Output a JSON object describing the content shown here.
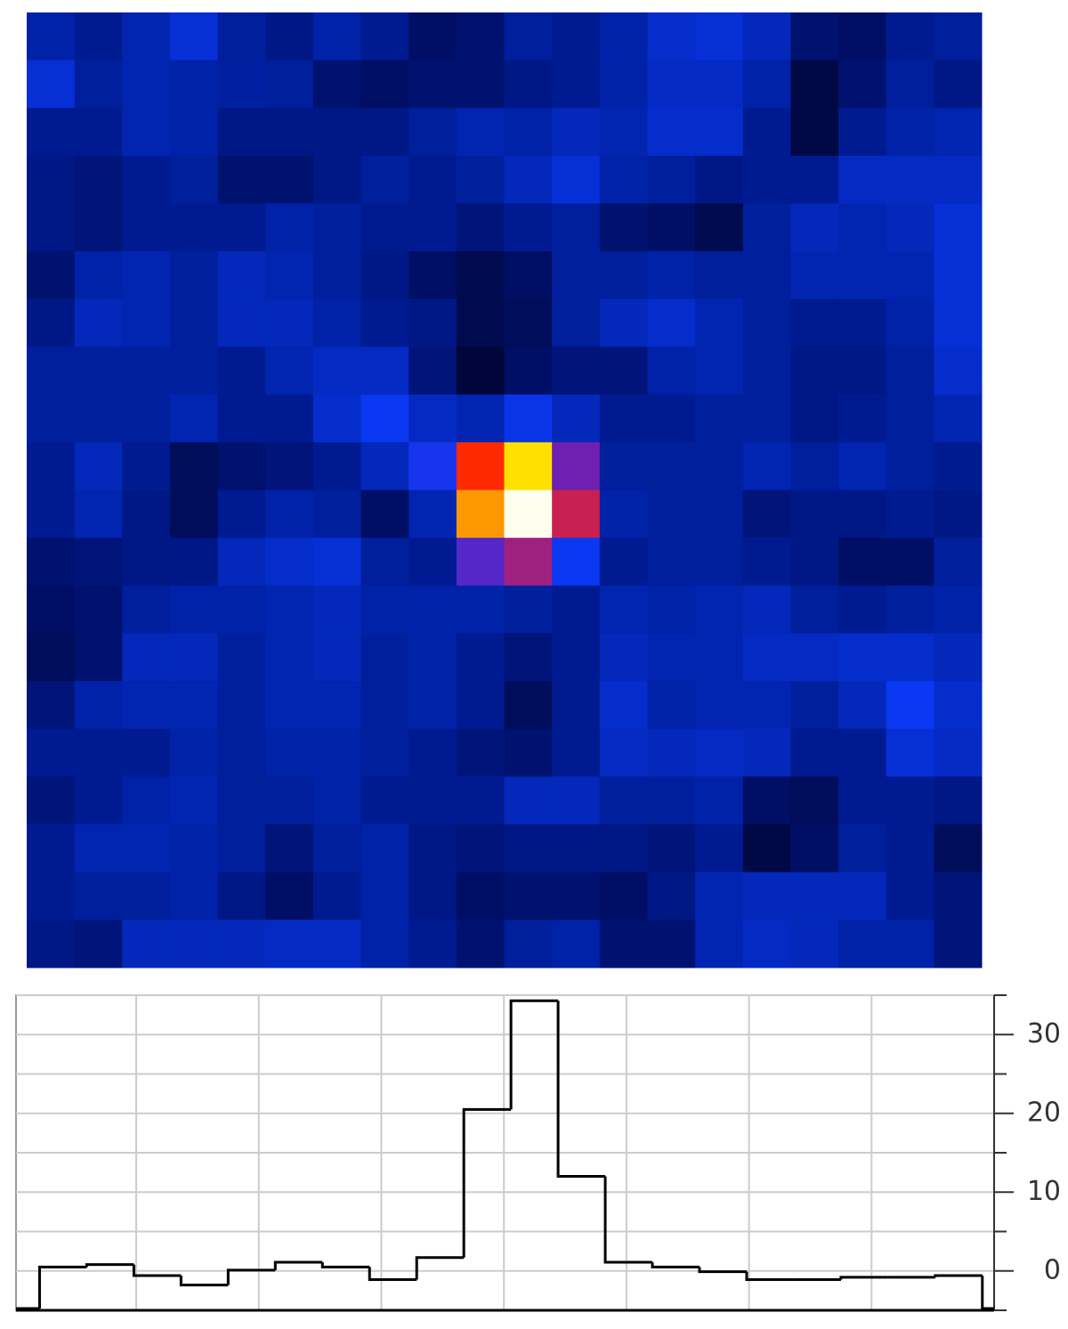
{
  "chart_data": [
    {
      "type": "heatmap",
      "colormap": [
        {
          "value": -5,
          "color": "#00053a"
        },
        {
          "value": -2,
          "color": "#00147a"
        },
        {
          "value": 0,
          "color": "#0022a8"
        },
        {
          "value": 4,
          "color": "#0a38f0"
        },
        {
          "value": 8,
          "color": "#3a2ce0"
        },
        {
          "value": 12,
          "color": "#7020b0"
        },
        {
          "value": 16,
          "color": "#a02080"
        },
        {
          "value": 19,
          "color": "#c82050"
        },
        {
          "value": 22,
          "color": "#ff2a00"
        },
        {
          "value": 25,
          "color": "#ff9800"
        },
        {
          "value": 28,
          "color": "#ffe000"
        },
        {
          "value": 35,
          "color": "#fffff0"
        }
      ],
      "values": [
        [
          0,
          -1,
          0.5,
          2.5,
          -0.5,
          -1.5,
          0,
          -1,
          -3,
          -2.5,
          -0.5,
          -1,
          0,
          2,
          2.5,
          1,
          -2.5,
          -3,
          -1,
          -0.5
        ],
        [
          2.5,
          -0.5,
          0.5,
          0,
          -0.3,
          -0.5,
          -2.5,
          -3,
          -2.5,
          -2.5,
          -1.5,
          -1,
          0,
          1.5,
          1.5,
          0,
          -4.5,
          -2.5,
          -0.5,
          -1.5
        ],
        [
          -1,
          -1,
          0.5,
          0,
          -1.5,
          -1.5,
          -1.5,
          -1.5,
          -0.5,
          0.5,
          0,
          1,
          0.5,
          2,
          2,
          -1,
          -4.5,
          -1,
          0,
          0.5
        ],
        [
          -1.5,
          -2,
          -1,
          -0.5,
          -2.5,
          -2.5,
          -1.5,
          -0.5,
          -1,
          -0.5,
          1,
          2.5,
          0,
          -0.5,
          -1.5,
          -1,
          -1,
          1.5,
          1.5,
          1.5
        ],
        [
          -1.5,
          -2,
          -1,
          -1,
          -1,
          0,
          -0.5,
          -1,
          -1,
          -2,
          -1,
          -0.5,
          -2.5,
          -3,
          -4,
          -0.5,
          1,
          0.5,
          1,
          2.5
        ],
        [
          -2.5,
          0,
          0.5,
          -0.5,
          1,
          0.5,
          -0.5,
          -1.5,
          -3,
          -4,
          -3,
          -0.5,
          -0.5,
          0,
          -0.5,
          -0.5,
          0.5,
          0.5,
          0.5,
          2.5
        ],
        [
          -1.5,
          1,
          0.5,
          -0.5,
          1,
          1,
          0,
          -1,
          -1.5,
          -4,
          -3.5,
          -0.5,
          1,
          2,
          0.5,
          -0.5,
          -1,
          -1,
          0,
          2.5
        ],
        [
          -0.5,
          -0.5,
          -0.5,
          -0.5,
          -1,
          0.5,
          1.5,
          1.5,
          -2,
          -5,
          -3,
          -2,
          -2,
          0,
          0.5,
          -0.5,
          -1.5,
          -1.5,
          -0.5,
          2
        ],
        [
          -0.5,
          -0.5,
          -0.5,
          0.5,
          -1,
          -1,
          2,
          4,
          1.5,
          0.5,
          3.5,
          1,
          -1,
          -1,
          -0.5,
          -0.5,
          -1.5,
          -1,
          -0.5,
          0.5
        ],
        [
          -1,
          1,
          -1,
          -3.5,
          -2.5,
          -2,
          -1,
          1,
          5,
          22,
          28,
          12,
          -0.5,
          -0.5,
          -0.5,
          0.5,
          -0.5,
          0.5,
          -0.5,
          -1
        ],
        [
          -1,
          0.5,
          -1.5,
          -3.5,
          -1,
          0,
          -0.5,
          -3,
          0.5,
          25,
          35,
          19,
          0,
          -0.5,
          -0.5,
          -2,
          -1.5,
          -1.5,
          -1,
          -1.5
        ],
        [
          -2.5,
          -2,
          -1.5,
          -1.5,
          1,
          2,
          2.5,
          -0.5,
          -1,
          10,
          16,
          4,
          -1,
          -0.5,
          -0.5,
          -1,
          -1.5,
          -3,
          -3,
          -0.5
        ],
        [
          -3,
          -2.5,
          -0.5,
          0,
          0,
          0.5,
          1,
          0,
          0,
          0,
          -0.5,
          -1,
          0.5,
          0,
          0.5,
          1,
          -0.5,
          -1,
          -0.5,
          0
        ],
        [
          -3.5,
          -2.5,
          1,
          1,
          -0.5,
          0.5,
          1,
          -0.5,
          0,
          -1,
          -2,
          -1,
          1,
          0.5,
          0.5,
          1.5,
          1.5,
          2,
          2,
          1
        ],
        [
          -2,
          0,
          0.5,
          0.5,
          -0.5,
          0.5,
          0.5,
          -0.5,
          0,
          -1,
          -3.5,
          -1,
          2,
          0,
          0.5,
          0.5,
          -0.5,
          1,
          4,
          2
        ],
        [
          -1,
          -1,
          -1,
          0,
          -0.5,
          0,
          0,
          -0.5,
          -1,
          -2,
          -2.5,
          -1,
          1.5,
          1,
          1.5,
          1,
          -1,
          -1,
          2.5,
          1.5
        ],
        [
          -2,
          -1,
          0,
          0.5,
          -0.5,
          -0.5,
          0,
          -1,
          -1,
          -1,
          1,
          1,
          -0.5,
          -0.5,
          0,
          -3,
          -3.5,
          -1,
          -1,
          -1.5
        ],
        [
          -1,
          0.5,
          0.5,
          0,
          -0.5,
          -2,
          -0.5,
          0,
          -1.5,
          -2,
          -1.5,
          -1.5,
          -1.5,
          -2,
          -1,
          -4.5,
          -3,
          -0.5,
          -1,
          -3.5
        ],
        [
          -1,
          -0.5,
          -0.5,
          0,
          -1.5,
          -3,
          -1,
          0,
          -1.5,
          -3,
          -2.5,
          -2.5,
          -3,
          -1.5,
          0.5,
          1,
          1,
          1,
          -1,
          -2
        ],
        [
          -1.5,
          -2,
          1,
          1,
          1,
          1.5,
          1.5,
          0,
          -1,
          -2.5,
          -0.5,
          0,
          -2.5,
          -2.5,
          0.5,
          1.5,
          1,
          0,
          0,
          -2
        ]
      ]
    },
    {
      "type": "step",
      "color": "#000000",
      "values": [
        0.5,
        0.8,
        -0.6,
        -1.8,
        0.1,
        1.1,
        0.5,
        -1.1,
        1.7,
        20.5,
        34.3,
        12,
        1.1,
        0.5,
        -0.1,
        -1.1,
        -1.1,
        -0.8,
        -0.8,
        -0.6
      ],
      "xlim": [
        -0.5,
        20.25
      ],
      "xgrid": [
        2.05,
        4.65,
        7.25,
        9.85,
        12.45,
        15.05,
        17.65
      ],
      "ylim": [
        -5,
        35
      ],
      "yticks": [
        0,
        10,
        20,
        30
      ],
      "yminor_ticks": [
        -5,
        5,
        15,
        25,
        35
      ],
      "grid": true
    }
  ]
}
